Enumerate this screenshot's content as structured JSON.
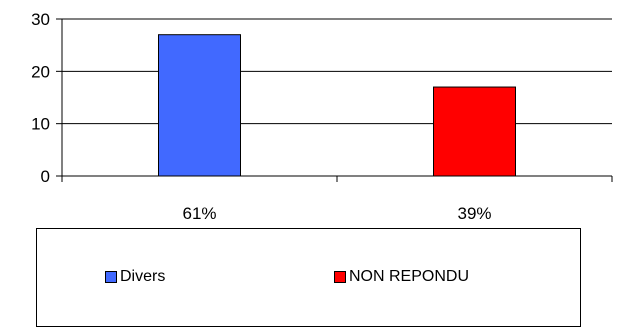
{
  "chart_data": {
    "type": "bar",
    "categories": [
      "61%",
      "39%"
    ],
    "series": [
      {
        "name": "Divers",
        "color": "#4169ff",
        "values": [
          27,
          null
        ]
      },
      {
        "name": "NON REPONDU",
        "color": "#ff0000",
        "values": [
          null,
          17
        ]
      }
    ],
    "ylim": [
      0,
      30
    ],
    "yticks": [
      "0",
      "10",
      "20",
      "30"
    ],
    "grid": true,
    "legend_position": "bottom"
  }
}
